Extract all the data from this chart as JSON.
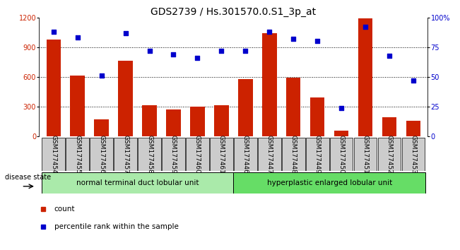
{
  "title": "GDS2739 / Hs.301570.0.S1_3p_at",
  "categories": [
    "GSM177454",
    "GSM177455",
    "GSM177456",
    "GSM177457",
    "GSM177458",
    "GSM177459",
    "GSM177460",
    "GSM177461",
    "GSM177446",
    "GSM177447",
    "GSM177448",
    "GSM177449",
    "GSM177450",
    "GSM177451",
    "GSM177452",
    "GSM177453"
  ],
  "counts": [
    980,
    610,
    170,
    760,
    315,
    270,
    300,
    310,
    580,
    1040,
    590,
    390,
    60,
    1190,
    190,
    155
  ],
  "percentiles": [
    88,
    83,
    51,
    87,
    72,
    69,
    66,
    72,
    72,
    88,
    82,
    80,
    24,
    92,
    68,
    47
  ],
  "group1_label": "normal terminal duct lobular unit",
  "group2_label": "hyperplastic enlarged lobular unit",
  "group1_count": 8,
  "group2_count": 8,
  "ylim_left": [
    0,
    1200
  ],
  "ylim_right": [
    0,
    100
  ],
  "yticks_left": [
    0,
    300,
    600,
    900,
    1200
  ],
  "yticks_right": [
    0,
    25,
    50,
    75,
    100
  ],
  "ytick_right_labels": [
    "0",
    "25",
    "50",
    "75",
    "100%"
  ],
  "bar_color": "#cc2200",
  "dot_color": "#0000cc",
  "grid_color": "#000000",
  "bg_color": "#ffffff",
  "tick_bg": "#cccccc",
  "group1_bg": "#aaeaaa",
  "group2_bg": "#66dd66",
  "legend_count_label": "count",
  "legend_pct_label": "percentile rank within the sample",
  "title_fontsize": 10,
  "tick_fontsize": 7,
  "label_fontsize": 8
}
